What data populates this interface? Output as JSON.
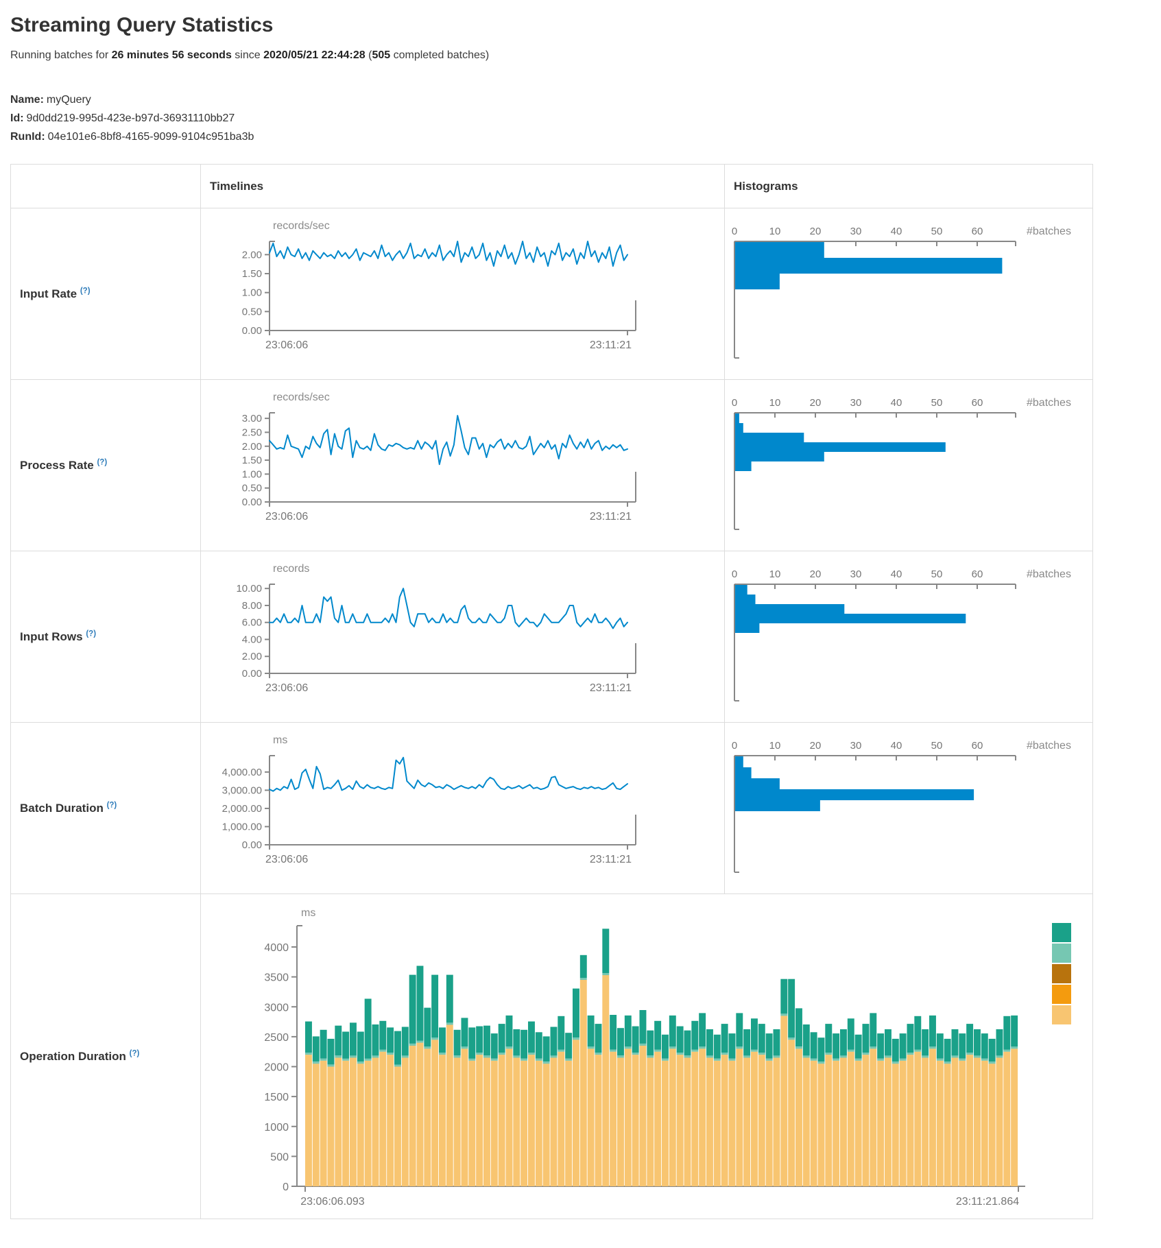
{
  "page": {
    "title": "Streaming Query Statistics",
    "subtitle_prefix": "Running batches for ",
    "duration": "26 minutes 56 seconds",
    "since_word": " since ",
    "start_time": "2020/05/21 22:44:28",
    "batches_open": " (",
    "completed_batches": "505",
    "batches_suffix": " completed batches)",
    "name_label": "Name:",
    "name_value": "myQuery",
    "id_label": "Id:",
    "id_value": "9d0dd219-995d-423e-b97d-36931110bb27",
    "runid_label": "RunId:",
    "runid_value": "04e101e6-8bf8-4165-9099-9104c951ba3b"
  },
  "table": {
    "columns": {
      "timelines": "Timelines",
      "histograms": "Histograms"
    },
    "rows": [
      {
        "label": "Input Rate",
        "help": "(?)"
      },
      {
        "label": "Process Rate",
        "help": "(?)"
      },
      {
        "label": "Input Rows",
        "help": "(?)"
      },
      {
        "label": "Batch Duration",
        "help": "(?)"
      },
      {
        "label": "Operation Duration",
        "help": "(?)"
      }
    ]
  },
  "colors": {
    "accent_blue": "#0088cc",
    "axis_gray": "#878787",
    "tick_text": "#757575",
    "legend": [
      "#1aa189",
      "#76c7b2",
      "#b8730d",
      "#f49b0e",
      "#f8c571"
    ]
  },
  "chart_data": [
    {
      "row": "Input Rate",
      "timeline": {
        "type": "line",
        "unit": "records/sec",
        "x_start": "23:06:06",
        "x_end": "23:11:21",
        "ylim": [
          0,
          2.35
        ],
        "tick_values": [
          0,
          0.5,
          1,
          1.5,
          2
        ],
        "tick_labels": [
          "0.00",
          "0.50",
          "1.00",
          "1.50",
          "2.00"
        ],
        "values": [
          2.05,
          2.3,
          1.95,
          2.1,
          1.9,
          2.2,
          2.0,
          1.95,
          2.15,
          1.9,
          2.05,
          1.85,
          2.1,
          2.0,
          1.9,
          2.05,
          1.95,
          2.0,
          1.9,
          2.1,
          1.95,
          2.05,
          1.9,
          2.0,
          2.15,
          1.85,
          2.05,
          2.0,
          1.95,
          2.1,
          1.9,
          2.25,
          1.95,
          2.05,
          1.85,
          2.0,
          2.1,
          1.9,
          2.05,
          2.3,
          1.9,
          2.0,
          1.95,
          2.15,
          1.9,
          2.05,
          1.95,
          2.25,
          1.85,
          2.0,
          2.1,
          1.95,
          2.35,
          1.8,
          2.05,
          1.95,
          2.2,
          1.9,
          2.0,
          2.3,
          1.85,
          2.05,
          1.7,
          2.1,
          1.95,
          2.25,
          1.9,
          2.05,
          1.75,
          2.0,
          2.35,
          1.9,
          2.05,
          1.8,
          2.2,
          1.95,
          2.05,
          1.7,
          2.1,
          2.0,
          2.3,
          1.85,
          2.05,
          1.95,
          2.15,
          1.75,
          2.05,
          1.9,
          2.35,
          1.95,
          2.1,
          1.8,
          2.05,
          1.9,
          2.2,
          1.7,
          2.05,
          2.25,
          1.85,
          2.0
        ]
      },
      "histogram": {
        "type": "bar",
        "xlabel": "#batches",
        "tick_values": [
          0,
          10,
          20,
          30,
          40,
          50,
          60
        ],
        "xlim": [
          0,
          69
        ],
        "bar_thickness_px": 23,
        "values": [
          22,
          66,
          11
        ]
      }
    },
    {
      "row": "Process Rate",
      "timeline": {
        "type": "line",
        "unit": "records/sec",
        "x_start": "23:06:06",
        "x_end": "23:11:21",
        "ylim": [
          0,
          3.2
        ],
        "tick_values": [
          0,
          0.5,
          1,
          1.5,
          2,
          2.5,
          3
        ],
        "tick_labels": [
          "0.00",
          "0.50",
          "1.00",
          "1.50",
          "2.00",
          "2.50",
          "3.00"
        ],
        "values": [
          2.2,
          2.05,
          1.9,
          1.95,
          1.9,
          2.4,
          2.0,
          1.95,
          1.9,
          1.6,
          2.0,
          1.9,
          2.35,
          2.1,
          1.95,
          2.45,
          2.6,
          1.7,
          2.45,
          2.0,
          1.9,
          2.55,
          2.65,
          1.6,
          2.2,
          1.95,
          1.9,
          2.0,
          1.85,
          2.45,
          2.05,
          1.9,
          1.85,
          2.05,
          2.0,
          2.1,
          2.05,
          1.95,
          1.9,
          1.95,
          1.9,
          2.2,
          1.9,
          2.15,
          2.05,
          1.9,
          2.2,
          1.35,
          1.9,
          2.15,
          1.65,
          2.05,
          3.1,
          2.55,
          1.95,
          1.7,
          2.3,
          2.3,
          1.9,
          2.1,
          1.6,
          2.05,
          1.95,
          2.15,
          2.25,
          1.9,
          2.1,
          1.95,
          2.2,
          1.95,
          1.9,
          2.0,
          2.35,
          1.7,
          1.9,
          2.1,
          1.95,
          2.2,
          1.9,
          2.05,
          1.55,
          2.1,
          1.95,
          2.4,
          2.1,
          1.9,
          2.15,
          1.95,
          2.25,
          1.9,
          2.1,
          2.2,
          1.85,
          2.0,
          1.9,
          2.05,
          1.95,
          2.05,
          1.85,
          1.9
        ]
      },
      "histogram": {
        "type": "bar",
        "xlabel": "#batches",
        "tick_values": [
          0,
          10,
          20,
          30,
          40,
          50,
          60
        ],
        "xlim": [
          0,
          69
        ],
        "bar_thickness_px": 14,
        "values": [
          1,
          2,
          17,
          52,
          22,
          4
        ]
      }
    },
    {
      "row": "Input Rows",
      "timeline": {
        "type": "line",
        "unit": "records",
        "x_start": "23:06:06",
        "x_end": "23:11:21",
        "ylim": [
          0,
          10.5
        ],
        "tick_values": [
          0,
          2,
          4,
          6,
          8,
          10
        ],
        "tick_labels": [
          "0.00",
          "2.00",
          "4.00",
          "6.00",
          "8.00",
          "10.00"
        ],
        "values": [
          6,
          6,
          6.5,
          6,
          7,
          6,
          6,
          6.5,
          6,
          8,
          6,
          6,
          6,
          7,
          6,
          9,
          8.5,
          9,
          6.5,
          6,
          8,
          6,
          6,
          7,
          6,
          6,
          6,
          7,
          6,
          6,
          6,
          6,
          6.5,
          6,
          7,
          6,
          9,
          10,
          8,
          6,
          5.5,
          7,
          7,
          7,
          6,
          6.5,
          6,
          6,
          7,
          6,
          6.5,
          6,
          6,
          7.5,
          8,
          6.5,
          6,
          6,
          6.5,
          6,
          6,
          7,
          6.5,
          6,
          6,
          6.5,
          8,
          8,
          6,
          5.5,
          6,
          6.5,
          6,
          6,
          5.5,
          6,
          7,
          6.5,
          6,
          6,
          6,
          6.5,
          7,
          8,
          8,
          6,
          5.5,
          6,
          6.5,
          6,
          7,
          6,
          6,
          6.5,
          6,
          5.3,
          6,
          6.5,
          5.5,
          6
        ]
      },
      "histogram": {
        "type": "bar",
        "xlabel": "#batches",
        "tick_values": [
          0,
          10,
          20,
          30,
          40,
          50,
          60
        ],
        "xlim": [
          0,
          69
        ],
        "bar_thickness_px": 14,
        "values": [
          3,
          5,
          27,
          57,
          6
        ]
      }
    },
    {
      "row": "Batch Duration",
      "timeline": {
        "type": "line",
        "unit": "ms",
        "x_start": "23:06:06",
        "x_end": "23:11:21",
        "ylim": [
          0,
          4900
        ],
        "tick_values": [
          0,
          1000,
          2000,
          3000,
          4000
        ],
        "tick_labels": [
          "0.00",
          "1,000.00",
          "2,000.00",
          "3,000.00",
          "4,000.00"
        ],
        "values": [
          3050,
          2950,
          3100,
          3000,
          3200,
          3100,
          3600,
          3050,
          3150,
          3950,
          4150,
          3600,
          3100,
          4300,
          3900,
          3050,
          3150,
          3100,
          3300,
          3550,
          3000,
          3100,
          3250,
          3050,
          3500,
          3200,
          3100,
          3300,
          3150,
          3100,
          3200,
          3100,
          3050,
          3150,
          3100,
          4650,
          4450,
          4800,
          3500,
          3300,
          3100,
          3550,
          3300,
          3200,
          3400,
          3300,
          3150,
          3200,
          3100,
          3300,
          3200,
          3050,
          3150,
          3250,
          3150,
          3100,
          3200,
          3100,
          3300,
          3150,
          3500,
          3700,
          3600,
          3300,
          3100,
          3050,
          3200,
          3100,
          3150,
          3250,
          3100,
          3200,
          3300,
          3100,
          3150,
          3050,
          3100,
          3200,
          3700,
          3750,
          3300,
          3200,
          3100,
          3150,
          3200,
          3100,
          3050,
          3150,
          3100,
          3200,
          3100,
          3150,
          3050,
          3100,
          3250,
          3400,
          3100,
          3050,
          3200,
          3350
        ]
      },
      "histogram": {
        "type": "bar",
        "xlabel": "#batches",
        "tick_values": [
          0,
          10,
          20,
          30,
          40,
          50,
          60
        ],
        "xlim": [
          0,
          69
        ],
        "bar_thickness_px": 16,
        "values": [
          2,
          4,
          11,
          59,
          21
        ]
      }
    },
    {
      "row": "Operation Duration",
      "stacked": {
        "type": "stacked-bar",
        "unit": "ms",
        "x_start": "23:06:06.093",
        "x_end": "23:11:21.864",
        "ylim": [
          0,
          4400
        ],
        "tick_values": [
          0,
          500,
          1000,
          1500,
          2000,
          2500,
          3000,
          3500,
          4000
        ],
        "tick_labels": [
          "0",
          "500",
          "1000",
          "1500",
          "2000",
          "2500",
          "3000",
          "3500",
          "4000"
        ],
        "n_bars": 96,
        "series": [
          {
            "name": "bottom",
            "color": "#f8c571",
            "values": [
              2200,
              2050,
              2100,
              2000,
              2150,
              2100,
              2150,
              2050,
              2100,
              2150,
              2250,
              2200,
              2000,
              2150,
              2350,
              2400,
              2300,
              2450,
              2200,
              2700,
              2150,
              2300,
              2100,
              2200,
              2150,
              2100,
              2200,
              2300,
              2150,
              2100,
              2200,
              2100,
              2050,
              2150,
              2250,
              2100,
              2450,
              3450,
              2300,
              2200,
              3530,
              2250,
              2150,
              2300,
              2200,
              2350,
              2150,
              2250,
              2100,
              2300,
              2200,
              2150,
              2250,
              2300,
              2150,
              2100,
              2200,
              2100,
              2300,
              2150,
              2250,
              2200,
              2100,
              2150,
              2850,
              2450,
              2300,
              2150,
              2100,
              2050,
              2200,
              2100,
              2150,
              2250,
              2100,
              2200,
              2300,
              2100,
              2150,
              2050,
              2100,
              2200,
              2250,
              2150,
              2300,
              2100,
              2050,
              2150,
              2100,
              2200,
              2150,
              2100,
              2050,
              2150,
              2250,
              2300
            ]
          },
          {
            "name": "middle",
            "color": "#76c7b2",
            "constant": 35
          },
          {
            "name": "top",
            "color": "#1aa189",
            "values": [
              520,
              420,
              480,
              430,
              500,
              450,
              550,
              500,
              1000,
              520,
              480,
              420,
              560,
              480,
              1150,
              1250,
              650,
              1050,
              420,
              800,
              430,
              480,
              520,
              440,
              500,
              420,
              480,
              520,
              440,
              480,
              520,
              440,
              420,
              480,
              560,
              430,
              820,
              380,
              520,
              480,
              740,
              580,
              460,
              520,
              440,
              560,
              420,
              480,
              400,
              520,
              440,
              420,
              480,
              560,
              440,
              400,
              480,
              420,
              560,
              440,
              520,
              480,
              420,
              440,
              580,
              980,
              640,
              520,
              440,
              400,
              480,
              420,
              440,
              520,
              400,
              480,
              560,
              420,
              440,
              380,
              420,
              480,
              560,
              440,
              520,
              420,
              380,
              440,
              420,
              480,
              440,
              420,
              380,
              440,
              560,
              520
            ]
          }
        ],
        "legend_position": "right",
        "legend_colors": [
          "#1aa189",
          "#76c7b2",
          "#b8730d",
          "#f49b0e",
          "#f8c571"
        ]
      }
    }
  ]
}
